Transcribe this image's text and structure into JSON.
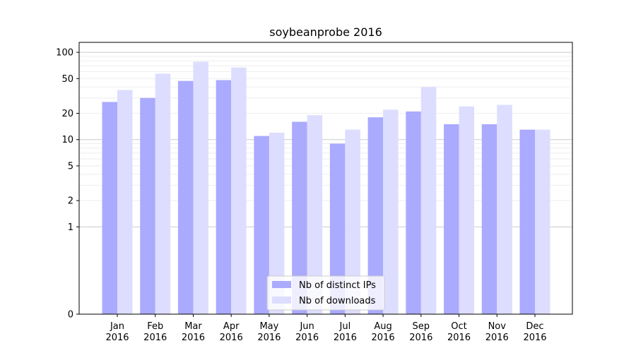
{
  "chart_data": {
    "type": "bar",
    "title": "soybeanprobe 2016",
    "xlabel": "",
    "ylabel": "",
    "y_scale": "symlog",
    "yticks": [
      0,
      1,
      2,
      5,
      10,
      20,
      50,
      100
    ],
    "ylim": [
      0,
      130
    ],
    "grid": true,
    "legend_position": "bottom-center",
    "categories": [
      [
        "Jan",
        "2016"
      ],
      [
        "Feb",
        "2016"
      ],
      [
        "Mar",
        "2016"
      ],
      [
        "Apr",
        "2016"
      ],
      [
        "May",
        "2016"
      ],
      [
        "Jun",
        "2016"
      ],
      [
        "Jul",
        "2016"
      ],
      [
        "Aug",
        "2016"
      ],
      [
        "Sep",
        "2016"
      ],
      [
        "Oct",
        "2016"
      ],
      [
        "Nov",
        "2016"
      ],
      [
        "Dec",
        "2016"
      ]
    ],
    "series": [
      {
        "name": "Nb of distinct IPs",
        "color": "#aaaaff",
        "values": [
          27,
          30,
          47,
          48,
          11,
          16,
          9,
          18,
          21,
          15,
          15,
          13
        ]
      },
      {
        "name": "Nb of downloads",
        "color": "#ddddff",
        "values": [
          37,
          57,
          78,
          67,
          12,
          19,
          13,
          22,
          40,
          24,
          25,
          13
        ]
      }
    ]
  }
}
